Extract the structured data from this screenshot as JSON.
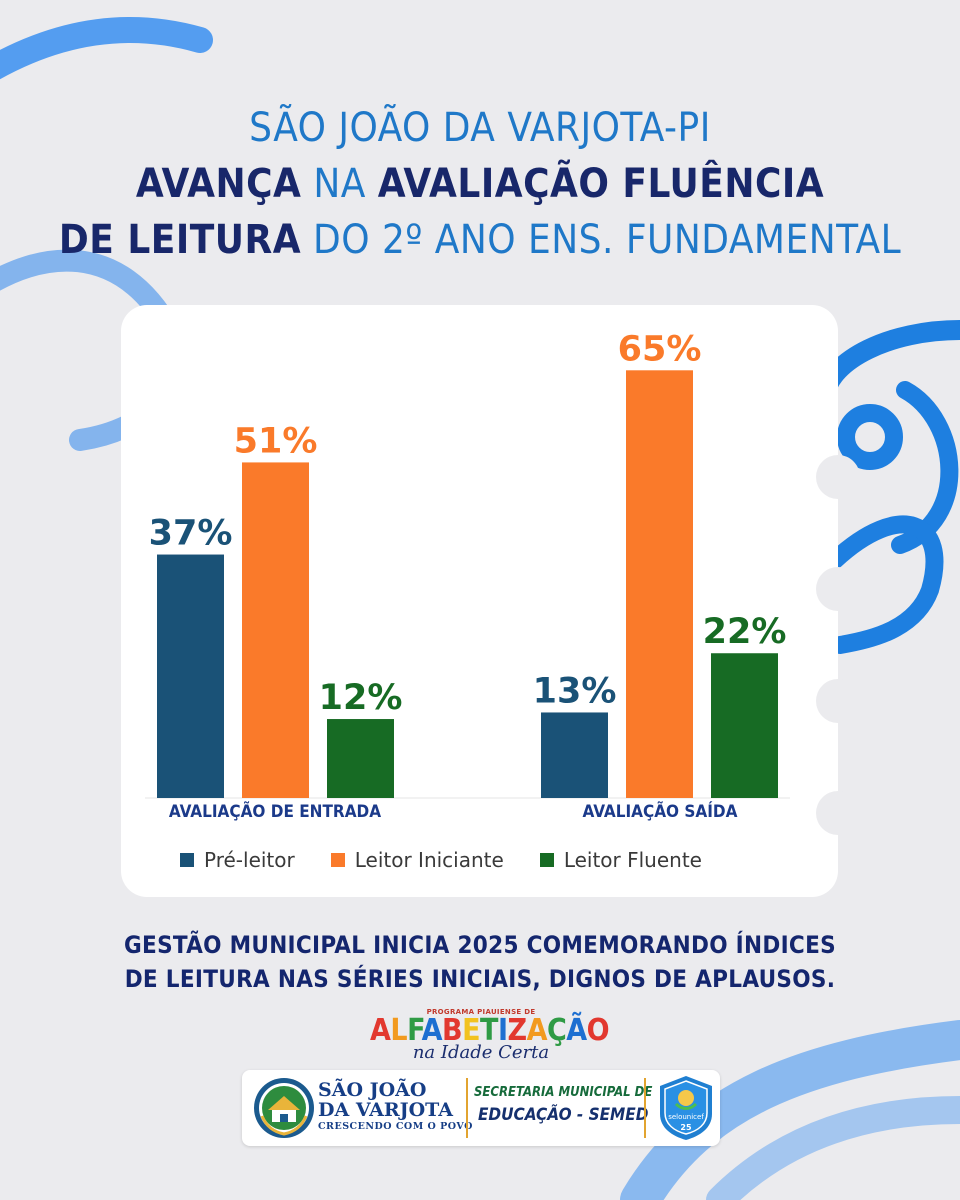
{
  "header": {
    "line1": "SÃO JOÃO DA VARJOTA-PI",
    "line2": [
      {
        "text": "AVANÇA",
        "style": "bold"
      },
      {
        "text": " NA ",
        "style": "light"
      },
      {
        "text": "AVALIAÇÃO FLUÊNCIA",
        "style": "bold"
      }
    ],
    "line3": [
      {
        "text": "DE LEITURA",
        "style": "bold"
      },
      {
        "text": " DO 2º ANO ENS. FUNDAMENTAL",
        "style": "light"
      }
    ]
  },
  "chart_data": {
    "type": "bar",
    "title": "",
    "categories": [
      "AVALIAÇÃO DE ENTRADA",
      "AVALIAÇÃO SAÍDA"
    ],
    "series": [
      {
        "name": "Pré-leitor",
        "color": "#1a5277",
        "values": [
          37,
          13
        ]
      },
      {
        "name": "Leitor Iniciante",
        "color": "#fa7a2a",
        "values": [
          51,
          65
        ]
      },
      {
        "name": "Leitor Fluente",
        "color": "#176b24",
        "values": [
          12,
          22
        ]
      }
    ],
    "label_colors": [
      "#1a5277",
      "#fa7a2a",
      "#176b24"
    ],
    "value_suffix": "%",
    "ylim": [
      0,
      70
    ],
    "grid": false,
    "legend_position": "bottom"
  },
  "footer": {
    "message_line1": "GESTÃO MUNICIPAL INICIA 2025 COMEMORANDO ÍNDICES",
    "message_line2": "DE LEITURA NAS SÉRIES INICIAIS, DIGNOS DE APLAUSOS.",
    "program_top": "PROGRAMA PIAUIENSE DE",
    "program_main": "ALFABETIZAÇÃO",
    "program_sub": "na Idade Certa",
    "municipality_line1": "SÃO JOÃO",
    "municipality_line2": "DA VARJOTA",
    "municipality_slogan": "CRESCENDO COM O POVO",
    "secretariat_line1": "SECRETARIA MUNICIPAL DE",
    "secretariat_line2": "EDUCAÇÃO - SEMED",
    "seal_text": "selounicef",
    "seal_number": "25"
  },
  "colors": {
    "title_light": "#1f78c8",
    "title_dark": "#18276a",
    "decor_blue": "#1e7fe0",
    "background": "#ebebee"
  }
}
